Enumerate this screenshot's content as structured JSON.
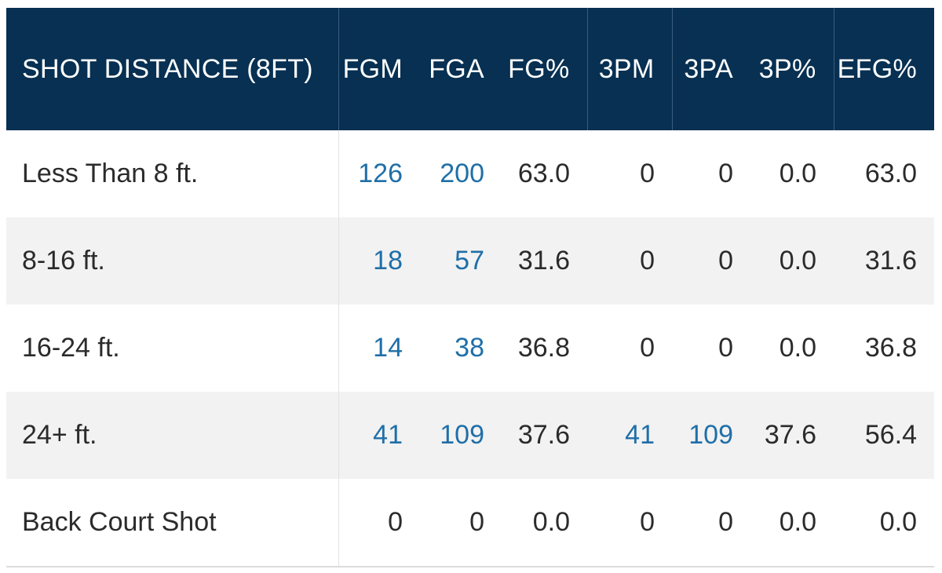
{
  "header": {
    "columns": [
      "SHOT DISTANCE (8FT)",
      "FGM",
      "FGA",
      "FG%",
      "3PM",
      "3PA",
      "3P%",
      "EFG%"
    ]
  },
  "rows": [
    {
      "label": "Less Than 8 ft.",
      "fgm": "126",
      "fga": "200",
      "fg_pct": "63.0",
      "tpm": "0",
      "tpa": "0",
      "tp_pct": "0.0",
      "efg_pct": "63.0"
    },
    {
      "label": "8-16 ft.",
      "fgm": "18",
      "fga": "57",
      "fg_pct": "31.6",
      "tpm": "0",
      "tpa": "0",
      "tp_pct": "0.0",
      "efg_pct": "31.6"
    },
    {
      "label": "16-24 ft.",
      "fgm": "14",
      "fga": "38",
      "fg_pct": "36.8",
      "tpm": "0",
      "tpa": "0",
      "tp_pct": "0.0",
      "efg_pct": "36.8"
    },
    {
      "label": "24+ ft.",
      "fgm": "41",
      "fga": "109",
      "fg_pct": "37.6",
      "tpm": "41",
      "tpa": "109",
      "tp_pct": "37.6",
      "efg_pct": "56.4"
    },
    {
      "label": "Back Court Shot",
      "fgm": "0",
      "fga": "0",
      "fg_pct": "0.0",
      "tpm": "0",
      "tpa": "0",
      "tp_pct": "0.0",
      "efg_pct": "0.0"
    }
  ],
  "colors": {
    "header_bg": "#073052",
    "link": "#1f6fa8",
    "text": "#2b2b2b",
    "row_alt": "#f2f2f2"
  }
}
